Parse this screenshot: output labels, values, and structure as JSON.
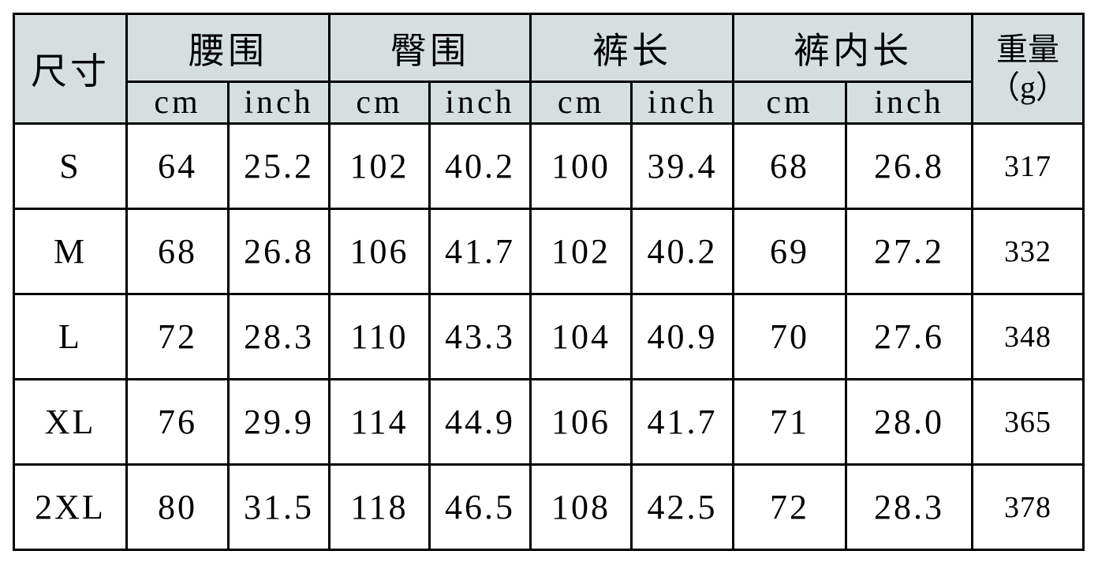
{
  "table": {
    "corner_header": "尺寸",
    "groups": [
      {
        "label": "腰围",
        "units": [
          "cm",
          "inch"
        ]
      },
      {
        "label": "臀围",
        "units": [
          "cm",
          "inch"
        ]
      },
      {
        "label": "裤长",
        "units": [
          "cm",
          "inch"
        ]
      },
      {
        "label": "裤内长",
        "units": [
          "cm",
          "inch"
        ]
      }
    ],
    "weight_header": "重量",
    "weight_unit": "（g）",
    "header_bg": "#d6dfdf",
    "rows": [
      {
        "size": "S",
        "cells": [
          "64",
          "25.2",
          "102",
          "40.2",
          "100",
          "39.4",
          "68",
          "26.8"
        ],
        "weight": "317"
      },
      {
        "size": "M",
        "cells": [
          "68",
          "26.8",
          "106",
          "41.7",
          "102",
          "40.2",
          "69",
          "27.2"
        ],
        "weight": "332"
      },
      {
        "size": "L",
        "cells": [
          "72",
          "28.3",
          "110",
          "43.3",
          "104",
          "40.9",
          "70",
          "27.6"
        ],
        "weight": "348"
      },
      {
        "size": "XL",
        "cells": [
          "76",
          "29.9",
          "114",
          "44.9",
          "106",
          "41.7",
          "71",
          "28.0"
        ],
        "weight": "365"
      },
      {
        "size": "2XL",
        "cells": [
          "80",
          "31.5",
          "118",
          "46.5",
          "108",
          "42.5",
          "72",
          "28.3"
        ],
        "weight": "378"
      }
    ]
  }
}
